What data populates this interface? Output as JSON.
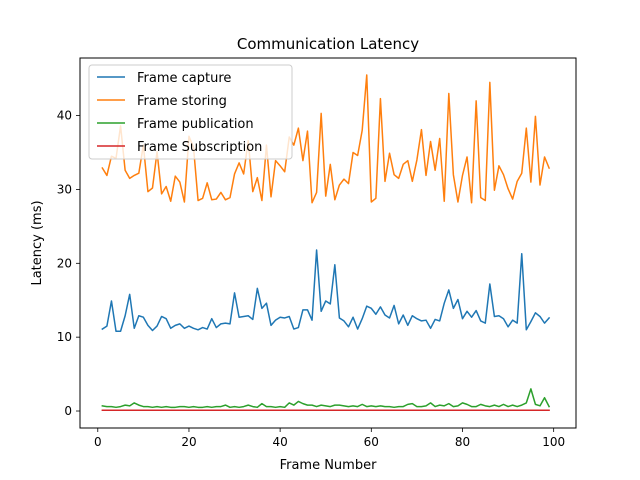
{
  "chart_data": {
    "type": "line",
    "title": "Communication Latency",
    "xlabel": "Frame Number",
    "ylabel": "Latency (ms)",
    "xlim": [
      -3.9,
      104.9
    ],
    "ylim": [
      -2.3,
      47.8
    ],
    "xticks": [
      0,
      20,
      40,
      60,
      80,
      100
    ],
    "yticks": [
      0,
      10,
      20,
      30,
      40
    ],
    "grid": false,
    "legend_position": "top-left",
    "x": [
      1,
      2,
      3,
      4,
      5,
      6,
      7,
      8,
      9,
      10,
      11,
      12,
      13,
      14,
      15,
      16,
      17,
      18,
      19,
      20,
      21,
      22,
      23,
      24,
      25,
      26,
      27,
      28,
      29,
      30,
      31,
      32,
      33,
      34,
      35,
      36,
      37,
      38,
      39,
      40,
      41,
      42,
      43,
      44,
      45,
      46,
      47,
      48,
      49,
      50,
      51,
      52,
      53,
      54,
      55,
      56,
      57,
      58,
      59,
      60,
      61,
      62,
      63,
      64,
      65,
      66,
      67,
      68,
      69,
      70,
      71,
      72,
      73,
      74,
      75,
      76,
      77,
      78,
      79,
      80,
      81,
      82,
      83,
      84,
      85,
      86,
      87,
      88,
      89,
      90,
      91,
      92,
      93,
      94,
      95,
      96,
      97,
      98,
      99
    ],
    "series": [
      {
        "name": "Frame capture",
        "color": "#1f77b4",
        "values": [
          11.1,
          11.5,
          14.9,
          10.8,
          10.8,
          12.9,
          15.8,
          11.2,
          12.9,
          12.7,
          11.6,
          10.9,
          11.5,
          12.8,
          12.5,
          11.2,
          11.6,
          11.8,
          11.2,
          11.5,
          11.2,
          11.0,
          11.3,
          11.1,
          12.5,
          11.3,
          11.8,
          11.9,
          11.8,
          16.0,
          12.7,
          12.8,
          12.9,
          12.4,
          16.6,
          13.9,
          14.6,
          11.6,
          12.3,
          12.7,
          12.6,
          12.8,
          11.1,
          11.3,
          13.7,
          13.7,
          12.3,
          21.8,
          13.5,
          14.9,
          14.5,
          19.8,
          12.6,
          12.2,
          11.4,
          12.7,
          11.1,
          12.5,
          14.2,
          13.9,
          13.1,
          14.1,
          13.0,
          12.6,
          14.3,
          11.8,
          13.0,
          11.6,
          12.9,
          12.5,
          12.2,
          12.3,
          11.2,
          12.4,
          12.2,
          14.6,
          16.4,
          13.9,
          15.1,
          12.5,
          13.5,
          12.7,
          13.6,
          12.2,
          11.9,
          17.2,
          12.8,
          12.9,
          12.5,
          11.4,
          12.3,
          11.9,
          21.3,
          11.0,
          12.1,
          13.3,
          12.8,
          11.9,
          12.6
        ]
      },
      {
        "name": "Frame storing",
        "color": "#ff7f0e",
        "values": [
          32.9,
          31.9,
          34.5,
          34.2,
          38.6,
          32.6,
          31.5,
          31.9,
          32.2,
          36.0,
          29.7,
          30.2,
          35.1,
          29.4,
          30.4,
          28.4,
          31.8,
          31.0,
          28.3,
          37.2,
          35.7,
          28.5,
          28.8,
          30.9,
          28.6,
          28.7,
          29.6,
          28.6,
          28.9,
          32.1,
          33.6,
          32.1,
          36.6,
          29.7,
          31.6,
          28.5,
          36.0,
          29.0,
          33.9,
          33.2,
          32.4,
          37.1,
          36.0,
          38.3,
          33.9,
          37.9,
          28.2,
          29.6,
          40.3,
          29.1,
          33.4,
          28.6,
          30.6,
          31.4,
          30.8,
          35.0,
          34.6,
          38.0,
          45.5,
          28.3,
          28.8,
          42.3,
          31.1,
          34.9,
          32.0,
          31.5,
          33.4,
          33.9,
          31.1,
          34.0,
          38.1,
          31.9,
          36.5,
          32.6,
          36.9,
          28.4,
          43.0,
          32.0,
          28.3,
          31.9,
          34.4,
          28.2,
          42.0,
          28.9,
          28.5,
          44.5,
          29.9,
          33.2,
          32.0,
          30.1,
          28.7,
          31.1,
          32.2,
          38.3,
          31.0,
          39.9,
          30.6,
          34.4,
          32.9
        ]
      },
      {
        "name": "Frame publication",
        "color": "#2ca02c",
        "values": [
          0.7,
          0.6,
          0.6,
          0.5,
          0.6,
          0.8,
          0.7,
          1.1,
          0.8,
          0.6,
          0.6,
          0.5,
          0.6,
          0.5,
          0.6,
          0.5,
          0.5,
          0.6,
          0.6,
          0.5,
          0.6,
          0.5,
          0.5,
          0.6,
          0.5,
          0.6,
          0.6,
          0.8,
          0.5,
          0.6,
          0.5,
          0.6,
          0.8,
          0.6,
          0.5,
          1.0,
          0.6,
          0.6,
          0.5,
          0.6,
          0.5,
          1.1,
          0.8,
          1.3,
          1.0,
          0.8,
          0.8,
          0.6,
          0.8,
          0.7,
          0.6,
          0.8,
          0.8,
          0.7,
          0.6,
          0.7,
          0.6,
          0.9,
          0.6,
          0.7,
          0.6,
          0.7,
          0.6,
          0.6,
          0.5,
          0.6,
          0.6,
          0.9,
          1.0,
          0.6,
          0.6,
          0.7,
          1.1,
          0.6,
          0.8,
          0.7,
          1.0,
          0.6,
          0.7,
          1.1,
          0.9,
          0.6,
          0.6,
          0.9,
          0.7,
          0.6,
          0.8,
          0.6,
          0.9,
          0.6,
          0.8,
          0.6,
          0.8,
          1.1,
          3.0,
          0.9,
          0.7,
          1.8,
          0.6
        ]
      },
      {
        "name": "Frame Subscription",
        "color": "#d62728",
        "values": [
          0.1,
          0.1,
          0.1,
          0.1,
          0.1,
          0.1,
          0.1,
          0.1,
          0.1,
          0.1,
          0.1,
          0.1,
          0.1,
          0.1,
          0.1,
          0.1,
          0.1,
          0.1,
          0.1,
          0.1,
          0.1,
          0.1,
          0.1,
          0.1,
          0.1,
          0.1,
          0.1,
          0.1,
          0.1,
          0.1,
          0.1,
          0.1,
          0.1,
          0.1,
          0.1,
          0.1,
          0.1,
          0.1,
          0.1,
          0.1,
          0.1,
          0.1,
          0.1,
          0.1,
          0.1,
          0.1,
          0.1,
          0.1,
          0.1,
          0.1,
          0.1,
          0.1,
          0.1,
          0.1,
          0.1,
          0.1,
          0.1,
          0.1,
          0.1,
          0.1,
          0.1,
          0.1,
          0.1,
          0.1,
          0.1,
          0.1,
          0.1,
          0.1,
          0.1,
          0.1,
          0.1,
          0.1,
          0.1,
          0.1,
          0.1,
          0.1,
          0.1,
          0.1,
          0.1,
          0.1,
          0.1,
          0.1,
          0.1,
          0.1,
          0.1,
          0.1,
          0.1,
          0.1,
          0.1,
          0.1,
          0.1,
          0.1,
          0.1,
          0.1,
          0.1,
          0.1,
          0.1,
          0.1,
          0.1
        ]
      }
    ]
  }
}
